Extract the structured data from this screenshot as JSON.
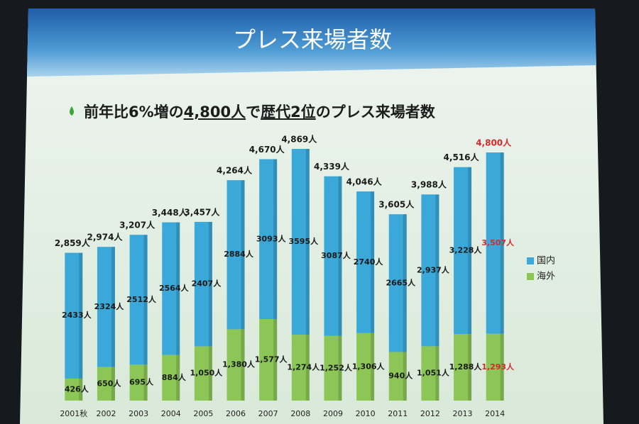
{
  "chart_data": {
    "type": "stacked-bar",
    "title": "プレス来場者数",
    "subtitle": [
      "前年比6%増の",
      "4,800人",
      "で",
      "歴代2位",
      "のプレス来場者数"
    ],
    "categories": [
      "2001秋",
      "2002",
      "2003",
      "2004",
      "2005",
      "2006",
      "2007",
      "2008",
      "2009",
      "2010",
      "2011",
      "2012",
      "2013",
      "2014"
    ],
    "series": [
      {
        "name": "国内",
        "color": "#3aa8d8",
        "values": [
          2433,
          2324,
          2512,
          2564,
          2407,
          2884,
          3093,
          3595,
          3087,
          2740,
          2665,
          2937,
          3228,
          3507
        ],
        "value_labels": [
          "2433人",
          "2324人",
          "2512人",
          "2564人",
          "2407人",
          "2884人",
          "3093人",
          "3595人",
          "3087人",
          "2740人",
          "2665人",
          "2,937人",
          "3,228人",
          "3,507人"
        ]
      },
      {
        "name": "海外",
        "color": "#8cc657",
        "values": [
          426,
          650,
          695,
          884,
          1050,
          1380,
          1577,
          1274,
          1252,
          1306,
          940,
          1051,
          1288,
          1293
        ],
        "value_labels": [
          "426人",
          "650人",
          "695人",
          "884人",
          "1,050人",
          "1,380人",
          "1,577人",
          "1,274人",
          "1,252人",
          "1,306人",
          "940人",
          "1,051人",
          "1,288人",
          "1,293人"
        ]
      }
    ],
    "totals": {
      "values": [
        2859,
        2974,
        3207,
        3448,
        3457,
        4264,
        4670,
        4869,
        4339,
        4046,
        3605,
        3988,
        4516,
        4800
      ],
      "value_labels": [
        "2,859人",
        "2,974人",
        "3,207人",
        "3,448人",
        "3,457人",
        "4,264人",
        "4,670人",
        "4,869人",
        "4,339人",
        "4,046人",
        "3,605人",
        "3,988人",
        "4,516人",
        "4,800人"
      ]
    },
    "highlight": {
      "category": "2014",
      "color": "#d42a2a"
    },
    "legend": "right"
  }
}
